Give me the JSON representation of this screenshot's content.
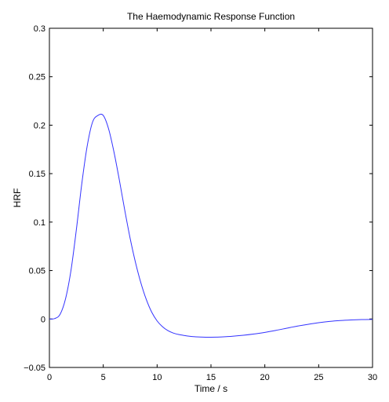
{
  "chart_data": {
    "type": "line",
    "title": "The Haemodynamic Response Function",
    "xlabel": "Time / s",
    "ylabel": "HRF",
    "xlim": [
      0,
      30
    ],
    "ylim": [
      -0.05,
      0.3
    ],
    "xticks": [
      "0",
      "5",
      "10",
      "15",
      "20",
      "25",
      "30"
    ],
    "yticks": [
      "−0.05",
      "0",
      "0.05",
      "0.1",
      "0.15",
      "0.2",
      "0.25",
      "0.3"
    ],
    "grid": false,
    "line_color": "#3333ff",
    "series": [
      {
        "x": [
          0,
          0.5,
          1,
          1.5,
          2,
          2.5,
          3,
          3.5,
          4,
          4.5,
          5,
          5.5,
          6,
          6.5,
          7,
          7.5,
          8,
          8.5,
          9,
          9.5,
          10,
          10.5,
          11,
          11.5,
          12,
          12.5,
          13,
          13.5,
          14,
          14.5,
          15,
          15.5,
          16,
          17,
          18,
          19,
          20,
          21,
          22,
          23,
          24,
          25,
          26,
          27,
          28,
          29,
          30
        ],
        "y": [
          0,
          0.0005,
          0.005,
          0.021,
          0.05,
          0.092,
          0.139,
          0.178,
          0.203,
          0.21,
          0.21,
          0.196,
          0.172,
          0.143,
          0.112,
          0.083,
          0.058,
          0.037,
          0.02,
          0.007,
          -0.002,
          -0.008,
          -0.012,
          -0.0145,
          -0.016,
          -0.017,
          -0.0178,
          -0.0183,
          -0.0186,
          -0.0188,
          -0.0188,
          -0.0187,
          -0.0185,
          -0.0178,
          -0.0168,
          -0.0155,
          -0.0138,
          -0.0118,
          -0.0096,
          -0.0074,
          -0.0055,
          -0.0038,
          -0.0025,
          -0.0016,
          -0.001,
          -0.0006,
          -0.0004
        ]
      }
    ]
  }
}
